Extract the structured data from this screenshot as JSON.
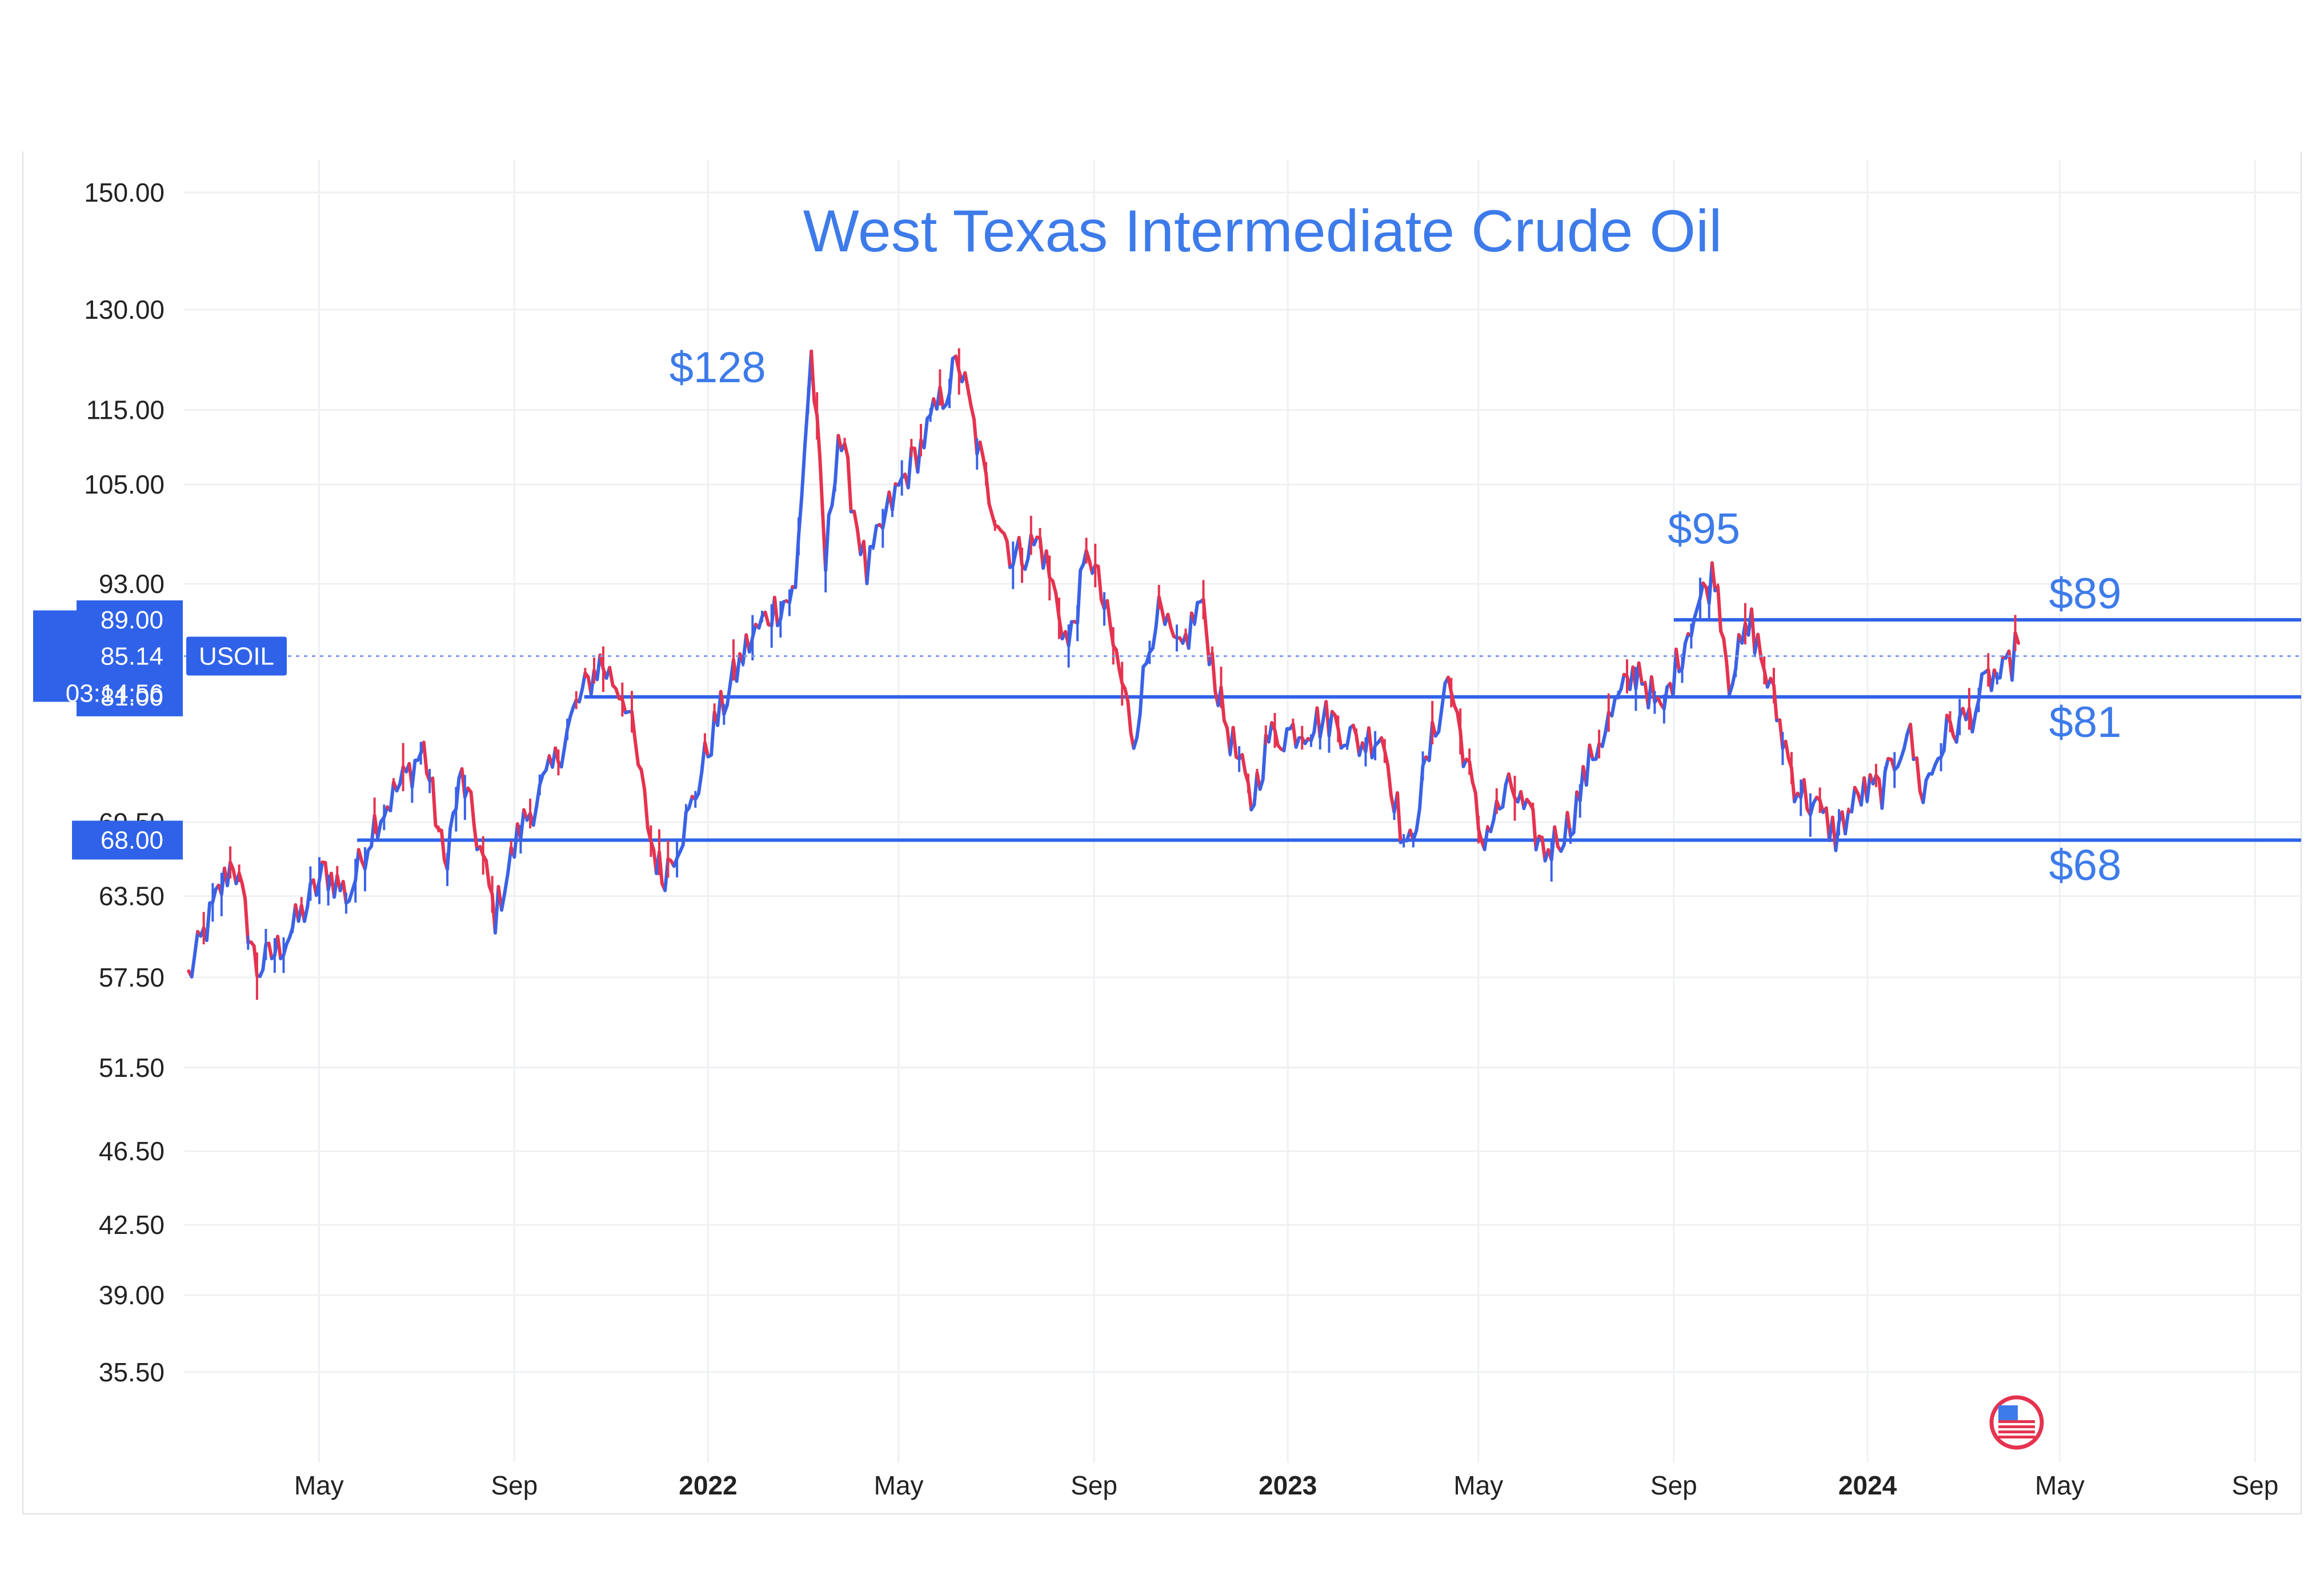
{
  "chart_data": {
    "type": "line",
    "title": "West Texas Intermediate Crude Oil",
    "symbol": "USOIL",
    "scale": "log",
    "ylim": [
      33.5,
      155
    ],
    "y_ticks": [
      "150.00",
      "130.00",
      "115.00",
      "105.00",
      "93.00",
      "69.50",
      "63.50",
      "57.50",
      "51.50",
      "46.50",
      "42.50",
      "39.00",
      "35.50"
    ],
    "x_ticks": [
      {
        "label": "May",
        "date": "2021-05-01",
        "bold": false
      },
      {
        "label": "Sep",
        "date": "2021-09-01",
        "bold": false
      },
      {
        "label": "2022",
        "date": "2022-01-01",
        "bold": true
      },
      {
        "label": "May",
        "date": "2022-05-01",
        "bold": false
      },
      {
        "label": "Sep",
        "date": "2022-09-01",
        "bold": false
      },
      {
        "label": "2023",
        "date": "2023-01-01",
        "bold": true
      },
      {
        "label": "May",
        "date": "2023-05-01",
        "bold": false
      },
      {
        "label": "Sep",
        "date": "2023-09-01",
        "bold": false
      },
      {
        "label": "2024",
        "date": "2024-01-01",
        "bold": true
      },
      {
        "label": "May",
        "date": "2024-05-01",
        "bold": false
      },
      {
        "label": "Sep",
        "date": "2024-09-01",
        "bold": false
      }
    ],
    "xlim": [
      "2021-02-05",
      "2024-09-30"
    ],
    "series": [
      {
        "points": [
          [
            "2021-02-08",
            57.5
          ],
          [
            "2021-02-25",
            63.0
          ],
          [
            "2021-03-08",
            66.5
          ],
          [
            "2021-03-23",
            58.0
          ],
          [
            "2021-04-05",
            59.5
          ],
          [
            "2021-04-20",
            62.0
          ],
          [
            "2021-05-05",
            65.5
          ],
          [
            "2021-05-20",
            63.5
          ],
          [
            "2021-06-05",
            69.5
          ],
          [
            "2021-06-25",
            73.5
          ],
          [
            "2021-07-06",
            76.0
          ],
          [
            "2021-07-19",
            66.0
          ],
          [
            "2021-07-30",
            73.5
          ],
          [
            "2021-08-20",
            62.0
          ],
          [
            "2021-09-05",
            69.0
          ],
          [
            "2021-09-25",
            74.0
          ],
          [
            "2021-10-10",
            80.0
          ],
          [
            "2021-10-25",
            84.5
          ],
          [
            "2021-11-10",
            81.0
          ],
          [
            "2021-11-26",
            68.0
          ],
          [
            "2021-12-03",
            65.0
          ],
          [
            "2021-12-20",
            70.0
          ],
          [
            "2022-01-05",
            78.0
          ],
          [
            "2022-01-25",
            86.0
          ],
          [
            "2022-02-10",
            90.0
          ],
          [
            "2022-02-25",
            92.0
          ],
          [
            "2022-03-07",
            123.0
          ],
          [
            "2022-03-16",
            95.0
          ],
          [
            "2022-03-24",
            112.0
          ],
          [
            "2022-04-11",
            94.0
          ],
          [
            "2022-04-25",
            102.0
          ],
          [
            "2022-05-15",
            110.0
          ],
          [
            "2022-06-08",
            122.0
          ],
          [
            "2022-06-25",
            105.0
          ],
          [
            "2022-07-12",
            96.0
          ],
          [
            "2022-07-29",
            98.0
          ],
          [
            "2022-08-16",
            86.0
          ],
          [
            "2022-08-29",
            97.0
          ],
          [
            "2022-09-15",
            85.0
          ],
          [
            "2022-09-26",
            77.0
          ],
          [
            "2022-10-10",
            90.0
          ],
          [
            "2022-10-25",
            85.0
          ],
          [
            "2022-11-07",
            91.0
          ],
          [
            "2022-11-20",
            80.0
          ],
          [
            "2022-12-09",
            71.0
          ],
          [
            "2022-12-20",
            77.0
          ],
          [
            "2023-01-10",
            78.0
          ],
          [
            "2023-01-27",
            79.0
          ],
          [
            "2023-02-15",
            76.5
          ],
          [
            "2023-03-01",
            77.5
          ],
          [
            "2023-03-17",
            66.5
          ],
          [
            "2023-03-31",
            75.5
          ],
          [
            "2023-04-12",
            83.0
          ],
          [
            "2023-05-03",
            68.0
          ],
          [
            "2023-05-22",
            72.5
          ],
          [
            "2023-06-12",
            67.0
          ],
          [
            "2023-06-28",
            69.5
          ],
          [
            "2023-07-12",
            75.5
          ],
          [
            "2023-07-28",
            80.5
          ],
          [
            "2023-08-10",
            84.0
          ],
          [
            "2023-08-24",
            79.0
          ],
          [
            "2023-09-12",
            89.0
          ],
          [
            "2023-09-27",
            94.5
          ],
          [
            "2023-10-06",
            83.0
          ],
          [
            "2023-10-20",
            88.5
          ],
          [
            "2023-11-03",
            80.5
          ],
          [
            "2023-11-16",
            73.0
          ],
          [
            "2023-12-12",
            68.5
          ],
          [
            "2023-12-28",
            72.0
          ],
          [
            "2024-01-12",
            72.5
          ],
          [
            "2024-01-26",
            78.0
          ],
          [
            "2024-02-05",
            72.0
          ],
          [
            "2024-02-20",
            77.5
          ],
          [
            "2024-03-05",
            79.0
          ],
          [
            "2024-03-19",
            83.0
          ],
          [
            "2024-03-28",
            83.0
          ],
          [
            "2024-04-05",
            86.5
          ]
        ]
      }
    ],
    "level_lines": [
      {
        "value": 89,
        "label": "$89",
        "from_date": "2023-09-01"
      },
      {
        "value": 81,
        "label": "$81",
        "from_date": "2021-10-15"
      },
      {
        "value": 68,
        "label": "$68",
        "from_date": "2021-05-25"
      }
    ],
    "annotations": [
      {
        "text": "$128",
        "date": "2022-01-07",
        "value": 128
      },
      {
        "text": "$95",
        "date": "2023-09-20",
        "value": 95
      }
    ],
    "current_price": {
      "value": 85.14,
      "value_label": "85.14",
      "countdown": "03:14:56"
    },
    "level_badges": [
      {
        "value": 89,
        "label": "89.00"
      },
      {
        "value": 81,
        "label": "81.00"
      },
      {
        "value": 68,
        "label": "68.00"
      }
    ],
    "colors": {
      "accent": "#3d7bea",
      "line": "#3a62e6",
      "down": "#e5334f",
      "grid": "#eef0f3"
    },
    "grid": true
  }
}
